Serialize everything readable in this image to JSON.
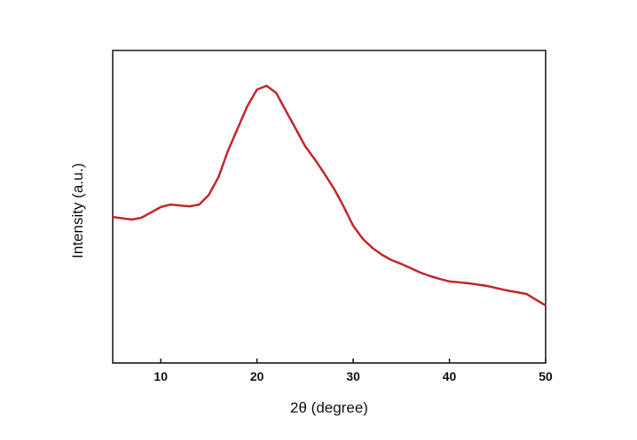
{
  "chart_data": {
    "type": "line",
    "x_label": "2θ (degree)",
    "y_label": "Intensity (a.u.)",
    "x": [
      5,
      7,
      8,
      9,
      10,
      11,
      12,
      13,
      14,
      15,
      16,
      17,
      18,
      19,
      20,
      21,
      22,
      23,
      24,
      25,
      26,
      27,
      28,
      29,
      30,
      31,
      32,
      33,
      34,
      35,
      36,
      37,
      38,
      39,
      40,
      42,
      44,
      46,
      48,
      50
    ],
    "series": [
      {
        "name": null,
        "color": "#c0282d",
        "values": [
          46.7,
          45.9,
          46.5,
          48.2,
          49.9,
          50.7,
          50.4,
          50.1,
          50.7,
          53.8,
          59.5,
          68,
          75.1,
          82.2,
          87.5,
          88.7,
          86.4,
          80.7,
          75.1,
          69.4,
          65.2,
          60.6,
          55.8,
          50.1,
          43.9,
          39.7,
          36.8,
          34.6,
          32.9,
          31.7,
          30.3,
          28.9,
          27.8,
          26.9,
          26.1,
          25.5,
          24.6,
          23.2,
          22.1,
          18.4
        ]
      }
    ],
    "xlim": [
      5,
      50
    ],
    "ylim": [
      0,
      100
    ],
    "xticks": [
      10,
      20,
      30,
      40,
      50
    ]
  }
}
